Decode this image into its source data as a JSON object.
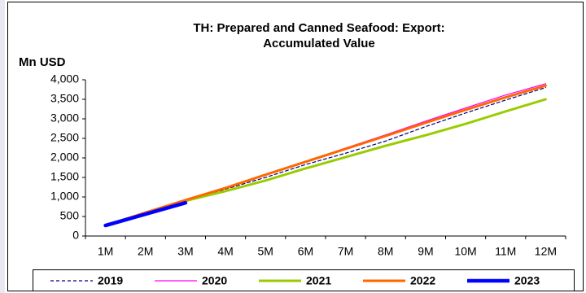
{
  "chart_data": {
    "type": "line",
    "title": [
      "TH: Prepared and Canned Seafood: Export:",
      "Accumulated Value"
    ],
    "y_label": "Mn USD",
    "categories": [
      "1M",
      "2M",
      "3M",
      "4M",
      "5M",
      "6M",
      "7M",
      "8M",
      "9M",
      "10M",
      "11M",
      "12M"
    ],
    "ylim": [
      0,
      4000
    ],
    "yticks": [
      0,
      500,
      {
        "value": 1000,
        "label": "1,000"
      },
      {
        "value": 1500,
        "label": "1,500"
      },
      {
        "value": 2000,
        "label": "2,000"
      },
      {
        "value": 2500,
        "label": "2,500"
      },
      {
        "value": 3000,
        "label": "3,000"
      },
      {
        "value": 3500,
        "label": "3,500"
      },
      {
        "value": 4000,
        "label": "4,000"
      }
    ],
    "grid": false,
    "legend": "bottom",
    "series": [
      {
        "name": "2019",
        "color": "#000080",
        "dashed": true,
        "line_width": 1.2,
        "values": [
          260,
          580,
          880,
          1200,
          1500,
          1830,
          2120,
          2430,
          2800,
          3150,
          3480,
          3800
        ]
      },
      {
        "name": "2020",
        "color": "#ff00ff",
        "dashed": false,
        "line_width": 1.2,
        "values": [
          270,
          600,
          910,
          1230,
          1570,
          1910,
          2250,
          2590,
          2940,
          3280,
          3610,
          3900
        ]
      },
      {
        "name": "2021",
        "color": "#99cc00",
        "dashed": false,
        "line_width": 3,
        "values": [
          270,
          580,
          900,
          1150,
          1420,
          1730,
          2020,
          2310,
          2580,
          2870,
          3190,
          3500
        ]
      },
      {
        "name": "2022",
        "color": "#ff6600",
        "dashed": false,
        "line_width": 3,
        "values": [
          270,
          600,
          920,
          1230,
          1570,
          1900,
          2230,
          2560,
          2900,
          3230,
          3550,
          3850
        ]
      },
      {
        "name": "2023",
        "color": "#0000ff",
        "dashed": false,
        "line_width": 4.5,
        "values": [
          270,
          560,
          850,
          null,
          null,
          null,
          null,
          null,
          null,
          null,
          null,
          null
        ]
      }
    ]
  }
}
